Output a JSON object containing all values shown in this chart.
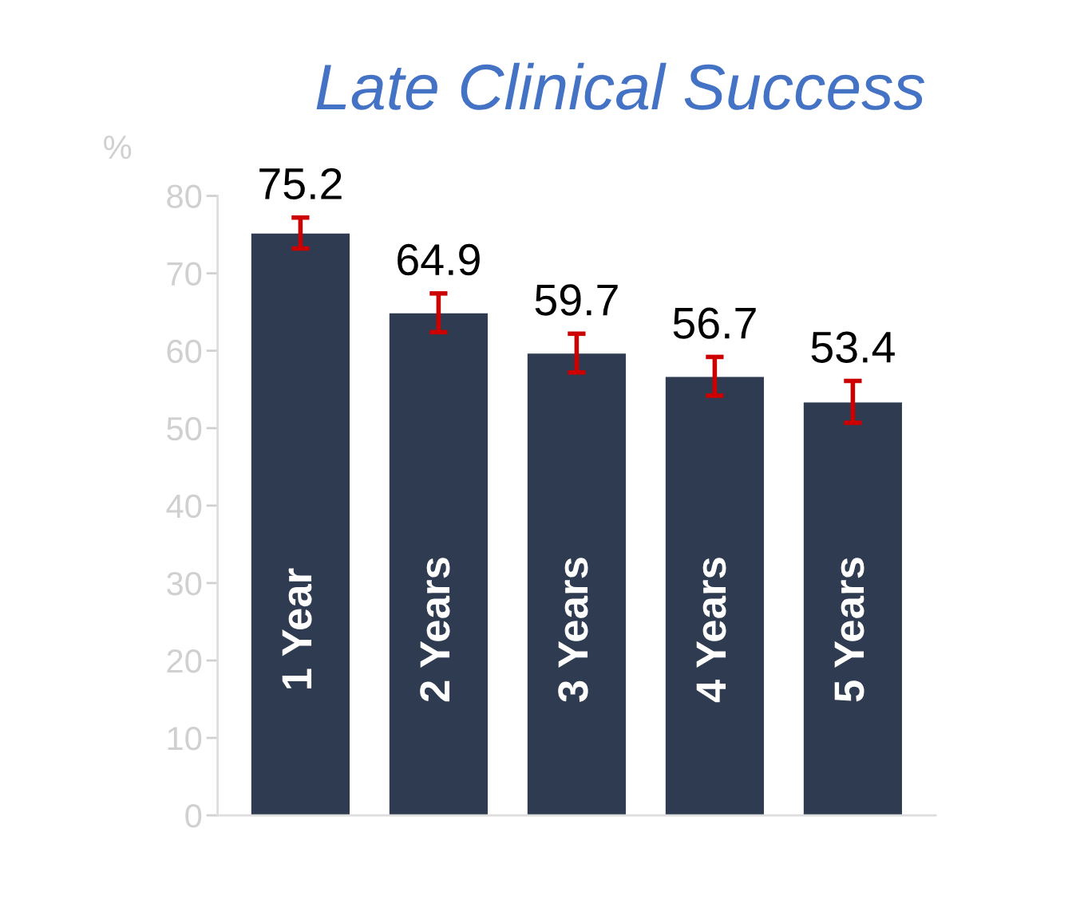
{
  "chart_data": {
    "type": "bar",
    "title": "Late Clinical Success",
    "ylabel": "%",
    "categories": [
      "1 Year",
      "2 Years",
      "3 Years",
      "4 Years",
      "5 Years"
    ],
    "values": [
      75.2,
      64.9,
      59.7,
      56.7,
      53.4
    ],
    "errors": [
      2,
      2.5,
      2.5,
      2.5,
      2.7
    ],
    "color": "#2f3b50",
    "ylim": [
      0,
      80
    ],
    "yticks": [
      0,
      10,
      20,
      30,
      40,
      50,
      60,
      70,
      80
    ],
    "data_labels": true,
    "grid": false
  }
}
